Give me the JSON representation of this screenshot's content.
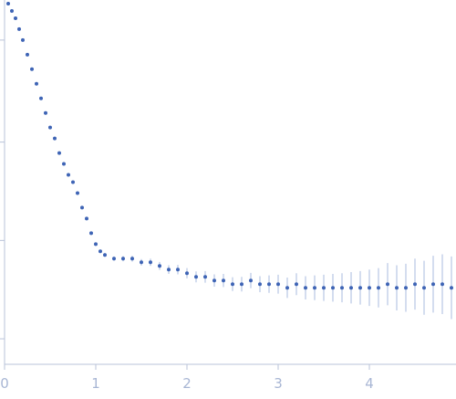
{
  "chart_data": {
    "type": "scatter",
    "title": "",
    "xlabel": "",
    "ylabel": "",
    "xlim": [
      0,
      4.95
    ],
    "ylim": [
      0,
      1
    ],
    "x_ticks": [
      "0",
      "1",
      "2",
      "3",
      "4"
    ],
    "y_ticks": [
      0.07,
      0.34,
      0.61,
      0.89
    ],
    "grid": false,
    "legend": "none",
    "colors": {
      "points": "#3e64b5",
      "error_bars": "#aabbdf",
      "axis": "#b9c3d9",
      "tick_label": "#a8b6d4"
    },
    "series": [
      {
        "points": [
          [
            0.04,
            0.99
          ],
          [
            0.08,
            0.97
          ],
          [
            0.12,
            0.95
          ],
          [
            0.16,
            0.92
          ],
          [
            0.2,
            0.89
          ],
          [
            0.25,
            0.85
          ],
          [
            0.3,
            0.81
          ],
          [
            0.35,
            0.77
          ],
          [
            0.4,
            0.73
          ],
          [
            0.45,
            0.69
          ],
          [
            0.5,
            0.65
          ],
          [
            0.55,
            0.62
          ],
          [
            0.6,
            0.58
          ],
          [
            0.65,
            0.55
          ],
          [
            0.7,
            0.52
          ],
          [
            0.75,
            0.5
          ],
          [
            0.8,
            0.47
          ],
          [
            0.85,
            0.43
          ],
          [
            0.9,
            0.4
          ],
          [
            0.95,
            0.36
          ],
          [
            1.0,
            0.33
          ],
          [
            1.05,
            0.31
          ],
          [
            1.1,
            0.3
          ],
          [
            1.2,
            0.29
          ],
          [
            1.3,
            0.29
          ],
          [
            1.4,
            0.29
          ],
          [
            1.5,
            0.28
          ],
          [
            1.6,
            0.28
          ],
          [
            1.7,
            0.27
          ],
          [
            1.8,
            0.26
          ],
          [
            1.9,
            0.26
          ],
          [
            2.0,
            0.25
          ],
          [
            2.1,
            0.24
          ],
          [
            2.2,
            0.24
          ],
          [
            2.3,
            0.23
          ],
          [
            2.4,
            0.23
          ],
          [
            2.5,
            0.22
          ],
          [
            2.6,
            0.22
          ],
          [
            2.7,
            0.23
          ],
          [
            2.8,
            0.22
          ],
          [
            2.9,
            0.22
          ],
          [
            3.0,
            0.22
          ],
          [
            3.1,
            0.21
          ],
          [
            3.2,
            0.22
          ],
          [
            3.3,
            0.21
          ],
          [
            3.4,
            0.21
          ],
          [
            3.5,
            0.21
          ],
          [
            3.6,
            0.21
          ],
          [
            3.7,
            0.21
          ],
          [
            3.8,
            0.21
          ],
          [
            3.9,
            0.21
          ],
          [
            4.0,
            0.21
          ],
          [
            4.1,
            0.21
          ],
          [
            4.2,
            0.22
          ],
          [
            4.3,
            0.21
          ],
          [
            4.4,
            0.21
          ],
          [
            4.5,
            0.22
          ],
          [
            4.6,
            0.21
          ],
          [
            4.7,
            0.22
          ],
          [
            4.8,
            0.22
          ],
          [
            4.9,
            0.21
          ]
        ],
        "errors": [
          0.002,
          0.002,
          0.002,
          0.002,
          0.002,
          0.002,
          0.002,
          0.002,
          0.002,
          0.002,
          0.002,
          0.002,
          0.002,
          0.002,
          0.002,
          0.002,
          0.002,
          0.003,
          0.003,
          0.003,
          0.003,
          0.004,
          0.005,
          0.006,
          0.007,
          0.008,
          0.009,
          0.01,
          0.011,
          0.012,
          0.013,
          0.014,
          0.015,
          0.016,
          0.017,
          0.018,
          0.019,
          0.02,
          0.021,
          0.022,
          0.024,
          0.026,
          0.028,
          0.03,
          0.032,
          0.034,
          0.036,
          0.038,
          0.04,
          0.043,
          0.046,
          0.05,
          0.054,
          0.058,
          0.062,
          0.066,
          0.07,
          0.074,
          0.078,
          0.082,
          0.086
        ]
      }
    ]
  }
}
